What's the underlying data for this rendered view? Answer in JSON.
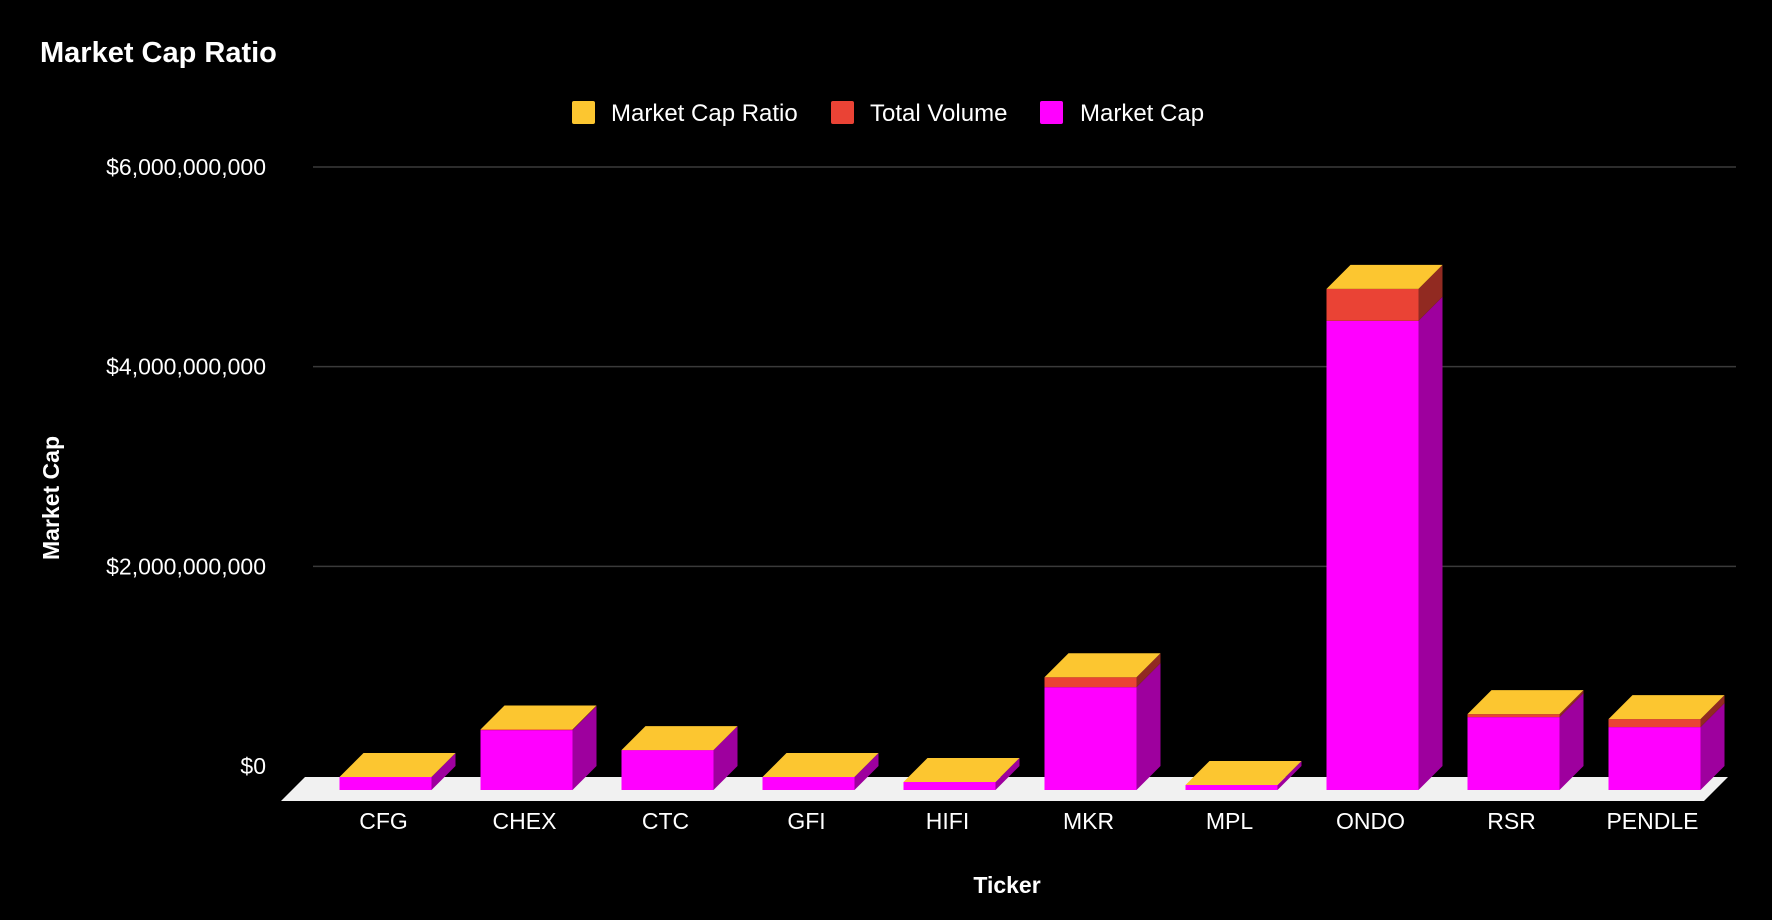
{
  "colors": {
    "background": "#000000",
    "market_cap_ratio": "#fcc630",
    "total_volume": "#ea4335",
    "market_cap": "#ff00ff",
    "gridline": "#3a3a3a",
    "floor": "#f1f1f1",
    "text": "#ffffff"
  },
  "chart_data": {
    "type": "bar",
    "stacked": true,
    "three_d": true,
    "title": "Market Cap Ratio",
    "xlabel": "Ticker",
    "ylabel": "Market Cap",
    "ylim": [
      0,
      6000000000
    ],
    "yticks": [
      {
        "value": 0,
        "label": "$0"
      },
      {
        "value": 2000000000,
        "label": "$2,000,000,000"
      },
      {
        "value": 4000000000,
        "label": "$4,000,000,000"
      },
      {
        "value": 6000000000,
        "label": "$6,000,000,000"
      }
    ],
    "grid": true,
    "legend_position": "top",
    "categories": [
      "CFG",
      "CHEX",
      "CTC",
      "GFI",
      "HIFI",
      "MKR",
      "MPL",
      "ONDO",
      "RSR",
      "PENDLE"
    ],
    "series": [
      {
        "name": "Market Cap",
        "color_key": "market_cap",
        "values": [
          130000000,
          600000000,
          400000000,
          130000000,
          80000000,
          1030000000,
          50000000,
          4700000000,
          730000000,
          630000000
        ]
      },
      {
        "name": "Total Volume",
        "color_key": "total_volume",
        "values": [
          3000000,
          6000000,
          4000000,
          2000000,
          2000000,
          100000000,
          1000000,
          320000000,
          30000000,
          80000000
        ]
      },
      {
        "name": "Market Cap Ratio",
        "color_key": "market_cap_ratio",
        "values": [
          0.02,
          0.01,
          0.01,
          0.02,
          0.03,
          0.1,
          0.02,
          0.07,
          0.04,
          0.13
        ]
      }
    ],
    "legend_order": [
      "Market Cap Ratio",
      "Total Volume",
      "Market Cap"
    ]
  }
}
